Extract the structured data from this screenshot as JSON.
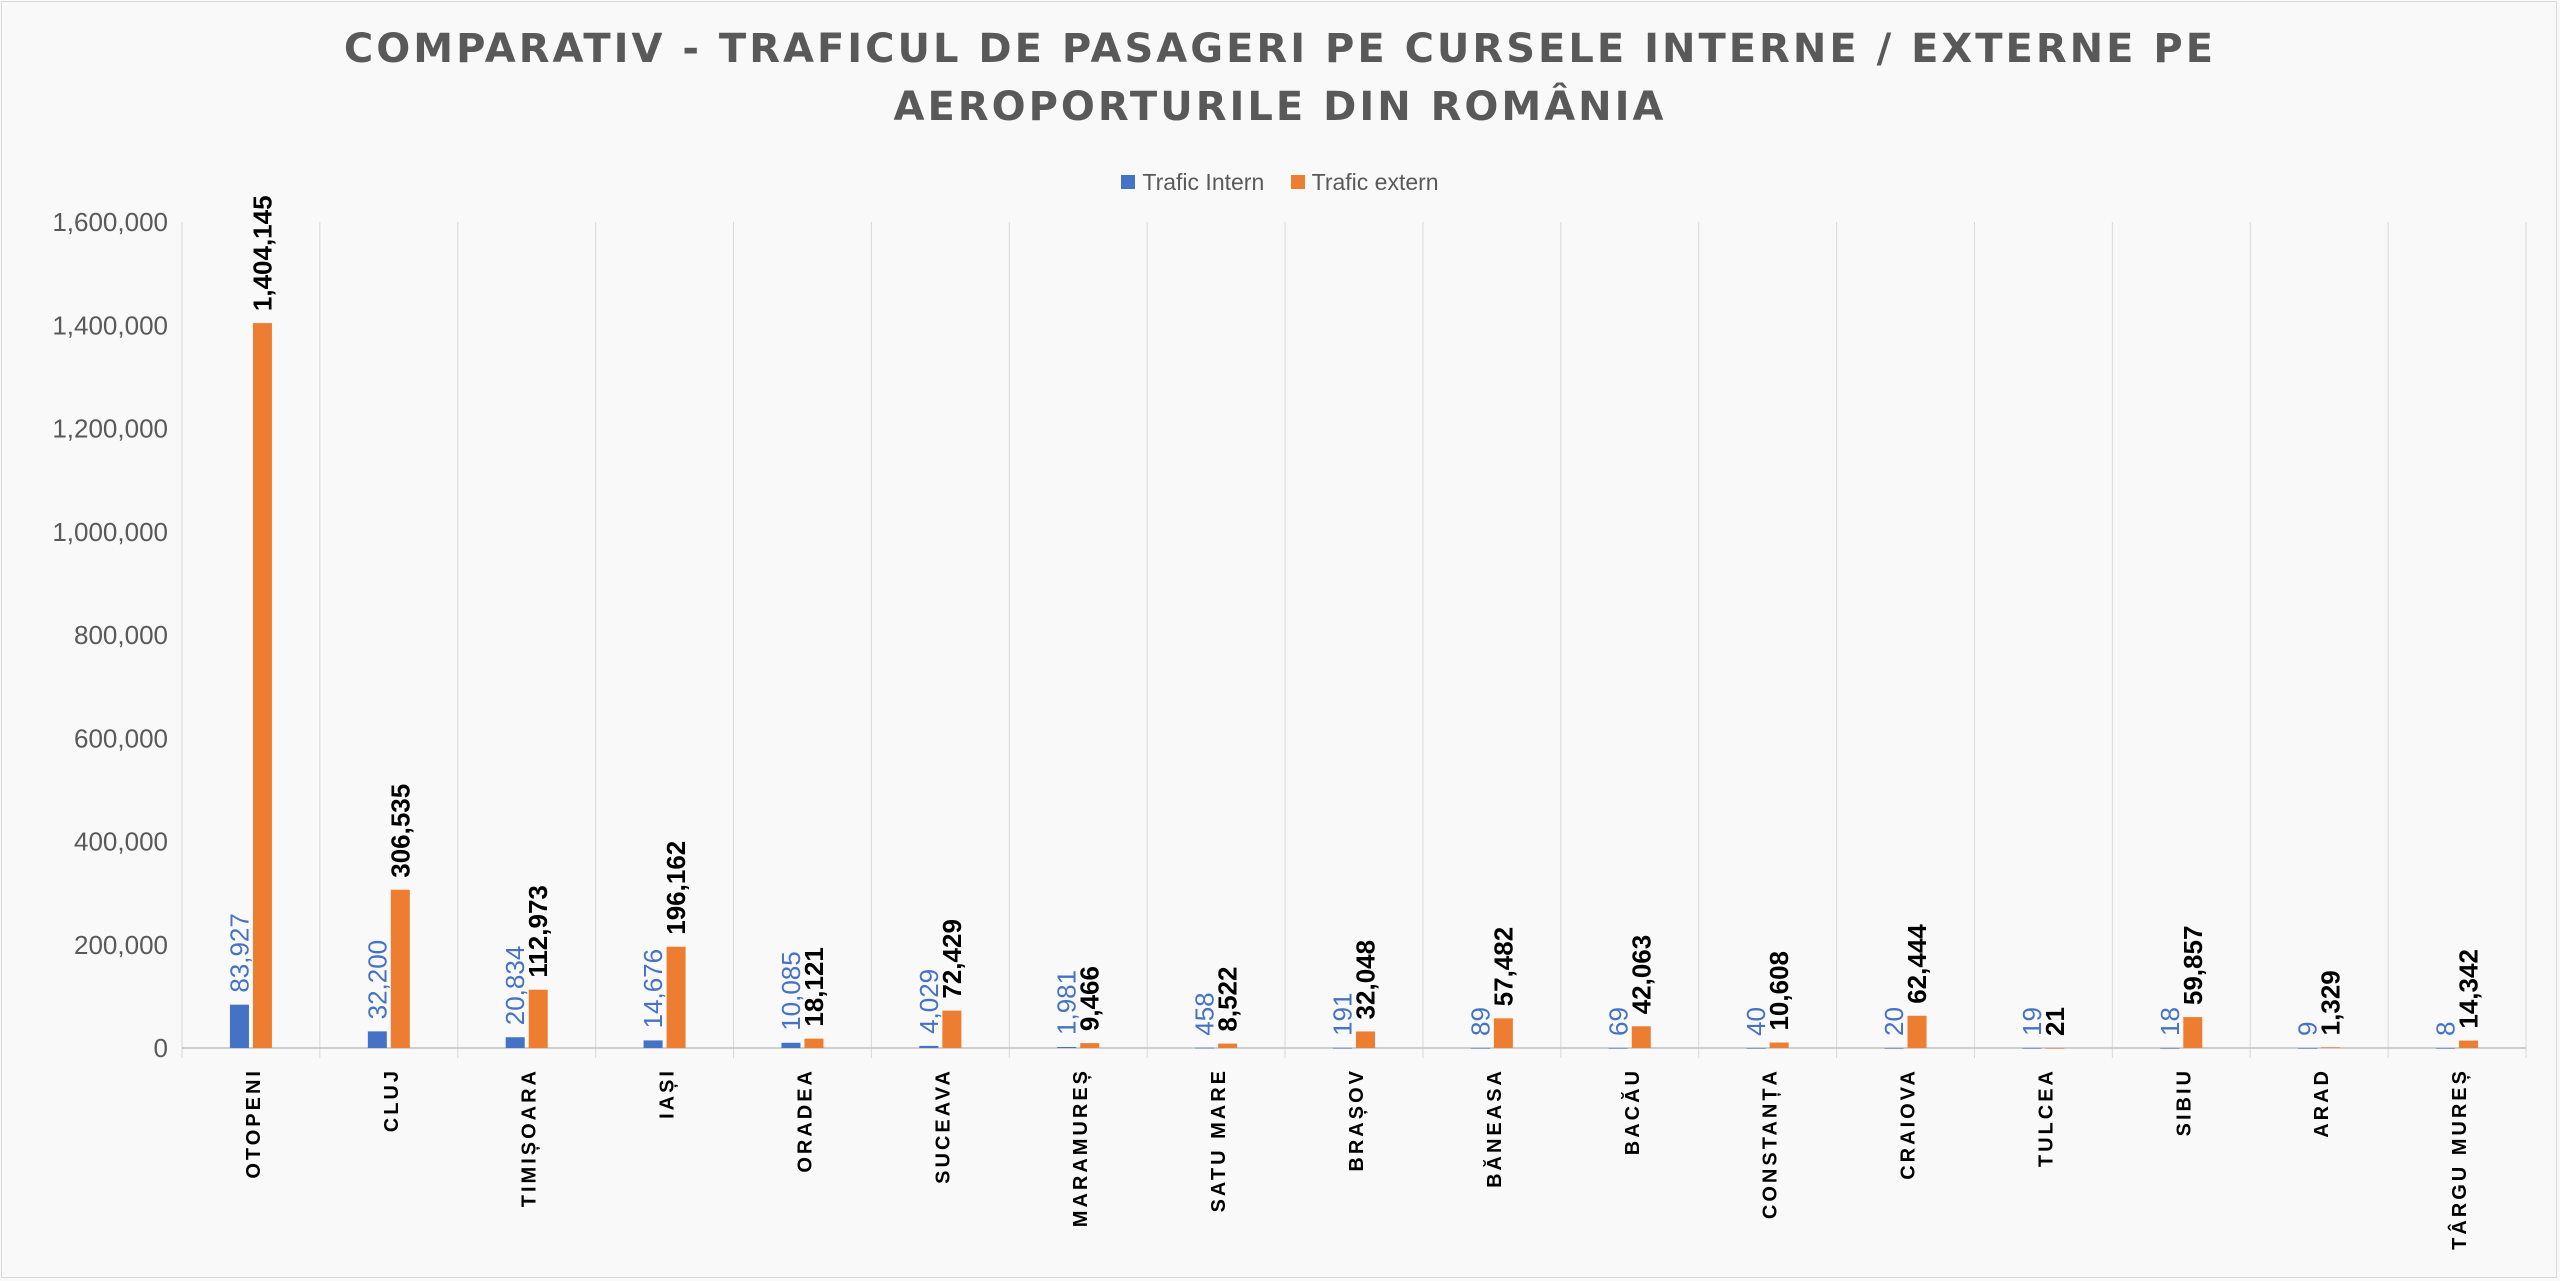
{
  "chart_data": {
    "type": "bar",
    "title_lines": [
      "COMPARATIV - TRAFICUL DE PASAGERI PE CURSELE INTERNE / EXTERNE PE",
      "AEROPORTURILE DIN ROMÂNIA"
    ],
    "categories": [
      "OTOPENI",
      "CLUJ",
      "TIMIȘOARA",
      "IAȘI",
      "ORADEA",
      "SUCEAVA",
      "MARAMUREȘ",
      "SATU MARE",
      "BRAȘOV",
      "BĂNEASA",
      "BACĂU",
      "CONSTANȚA",
      "CRAIOVA",
      "TULCEA",
      "SIBIU",
      "ARAD",
      "TÂRGU MUREȘ"
    ],
    "series": [
      {
        "name": "Trafic Intern",
        "color": "#4472c4",
        "label_color": "#4472c4",
        "values": [
          83927,
          32200,
          20834,
          14676,
          10085,
          4029,
          1981,
          458,
          191,
          89,
          69,
          40,
          20,
          19,
          18,
          9,
          8
        ],
        "labels": [
          "83,927",
          "32,200",
          "20,834",
          "14,676",
          "10,085",
          "4,029",
          "1,981",
          "458",
          "191",
          "89",
          "69",
          "40",
          "20",
          "19",
          "18",
          "9",
          "8"
        ]
      },
      {
        "name": "Trafic extern",
        "color": "#ed7d31",
        "label_color": "#000000",
        "values": [
          1404145,
          306535,
          112973,
          196162,
          18121,
          72429,
          9466,
          8522,
          32048,
          57482,
          42063,
          10608,
          62444,
          21,
          59857,
          1329,
          14342
        ],
        "labels": [
          "1,404,145",
          "306,535",
          "112,973",
          "196,162",
          "18,121",
          "72,429",
          "9,466",
          "8,522",
          "32,048",
          "57,482",
          "42,063",
          "10,608",
          "62,444",
          "21",
          "59,857",
          "1,329",
          "14,342"
        ]
      }
    ],
    "ylim": [
      0,
      1600000
    ],
    "yticks": [
      0,
      200000,
      400000,
      600000,
      800000,
      1000000,
      1200000,
      1400000,
      1600000
    ],
    "ytick_labels": [
      "0",
      "200,000",
      "400,000",
      "600,000",
      "800,000",
      "1,000,000",
      "1,200,000",
      "1,400,000",
      "1,600,000"
    ],
    "legend_position": "top-center",
    "grid": "vertical category separators"
  }
}
